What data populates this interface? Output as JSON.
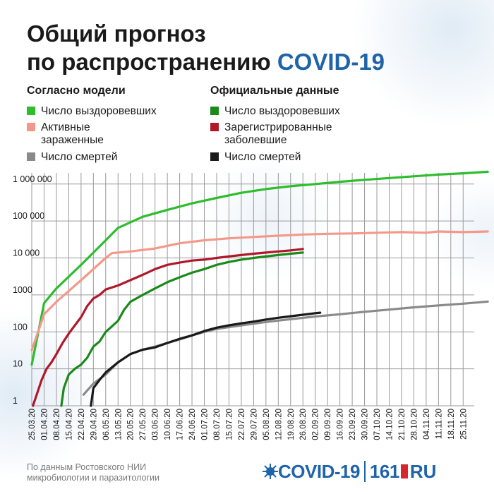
{
  "title": {
    "line1": "Общий прогноз",
    "line2_prefix": "по распространению ",
    "line2_accent": "COVID-19"
  },
  "legend": {
    "model_header": "Согласно модели",
    "official_header": "Официальные данные",
    "model_items": [
      {
        "label": "Число выздоровевших",
        "color": "#2dbd2d"
      },
      {
        "label": "Активные зараженные",
        "color": "#f4998a"
      },
      {
        "label": "Число смертей",
        "color": "#8a8a8a"
      }
    ],
    "official_items": [
      {
        "label": "Число выздоровевших",
        "color": "#1a8a1a"
      },
      {
        "label": "Зарегистрированные заболевшие",
        "color": "#b0182a"
      },
      {
        "label": "Число смертей",
        "color": "#1a1a1a"
      }
    ]
  },
  "source": "По данным Ростовского НИИ микробиологии и паразитологии",
  "brand": {
    "covid": "COVID-19",
    "num": "161",
    "ru": "RU"
  },
  "chart_data": {
    "type": "line",
    "y_scale": "log",
    "ylim": [
      1,
      2000000
    ],
    "y_ticks": [
      1,
      10,
      100,
      1000,
      10000,
      100000,
      1000000
    ],
    "y_tick_labels": [
      "1",
      "10",
      "100",
      "1000",
      "10 000",
      "100 000",
      "1 000 000"
    ],
    "x_labels": [
      "25.03.20",
      "01.04.20",
      "08.04.20",
      "15.04.20",
      "22.04.20",
      "29.04.20",
      "06.05.20",
      "13.05.20",
      "20.05.20",
      "27.05.20",
      "03.06.20",
      "10.06.20",
      "17.06.20",
      "24.06.20",
      "01.07.20",
      "08.07.20",
      "15.07.20",
      "22.07.20",
      "29.07.20",
      "05.08.20",
      "12.08.20",
      "19.08.20",
      "26.08.20",
      "02.09.20",
      "09.09.20",
      "16.09.20",
      "23.09.20",
      "30.09.20",
      "07.10.20",
      "14.10.20",
      "21.10.20",
      "28.10.20",
      "04.11.20",
      "11.11.20",
      "18.11.20",
      "25.11.20"
    ],
    "series": [
      {
        "name": "Число выздоровевших",
        "group": "model",
        "color": "#2dbd2d",
        "points": [
          [
            0,
            13
          ],
          [
            1,
            600
          ],
          [
            2,
            1500
          ],
          [
            4,
            6500
          ],
          [
            6,
            30000
          ],
          [
            7,
            65000
          ],
          [
            9,
            130000
          ],
          [
            11,
            200000
          ],
          [
            13,
            300000
          ],
          [
            15,
            420000
          ],
          [
            17,
            580000
          ],
          [
            19,
            730000
          ],
          [
            21,
            870000
          ],
          [
            23,
            1000000
          ],
          [
            25,
            1150000
          ],
          [
            27,
            1300000
          ],
          [
            29,
            1450000
          ],
          [
            31,
            1620000
          ],
          [
            33,
            1800000
          ],
          [
            35,
            1950000
          ],
          [
            37,
            2150000
          ]
        ]
      },
      {
        "name": "Активные зараженные",
        "group": "model",
        "color": "#f4998a",
        "points": [
          [
            0,
            32
          ],
          [
            1,
            300
          ],
          [
            2,
            650
          ],
          [
            4,
            2500
          ],
          [
            6,
            10000
          ],
          [
            6.5,
            13500
          ],
          [
            8,
            15000
          ],
          [
            10,
            18000
          ],
          [
            12,
            25000
          ],
          [
            14,
            30000
          ],
          [
            16,
            34000
          ],
          [
            18,
            37000
          ],
          [
            20,
            40000
          ],
          [
            22,
            43000
          ],
          [
            24,
            45000
          ],
          [
            26,
            46000
          ],
          [
            28,
            48000
          ],
          [
            30,
            50000
          ],
          [
            32,
            48000
          ],
          [
            33,
            52000
          ],
          [
            35,
            50000
          ],
          [
            37,
            52000
          ]
        ]
      },
      {
        "name": "Число смертей",
        "group": "model",
        "color": "#8a8a8a",
        "points": [
          [
            4.2,
            2
          ],
          [
            5,
            4
          ],
          [
            6,
            7
          ],
          [
            7,
            15
          ],
          [
            8,
            25
          ],
          [
            9,
            33
          ],
          [
            10,
            40
          ],
          [
            11,
            50
          ],
          [
            12,
            62
          ],
          [
            13,
            80
          ],
          [
            14,
            100
          ],
          [
            15,
            120
          ],
          [
            17,
            150
          ],
          [
            19,
            185
          ],
          [
            21,
            220
          ],
          [
            23,
            260
          ],
          [
            25,
            300
          ],
          [
            27,
            350
          ],
          [
            29,
            400
          ],
          [
            31,
            460
          ],
          [
            33,
            520
          ],
          [
            35,
            580
          ],
          [
            37,
            660
          ]
        ]
      },
      {
        "name": "Число выздоровевших",
        "group": "official",
        "color": "#1a8a1a",
        "points": [
          [
            2.4,
            1
          ],
          [
            2.6,
            3
          ],
          [
            3,
            7
          ],
          [
            3.5,
            10
          ],
          [
            4,
            13
          ],
          [
            4.5,
            20
          ],
          [
            5,
            40
          ],
          [
            5.5,
            55
          ],
          [
            6,
            100
          ],
          [
            6.5,
            140
          ],
          [
            7,
            200
          ],
          [
            7.5,
            400
          ],
          [
            8,
            650
          ],
          [
            9,
            1000
          ],
          [
            10,
            1500
          ],
          [
            11,
            2200
          ],
          [
            12,
            3000
          ],
          [
            13,
            4000
          ],
          [
            14,
            5000
          ],
          [
            15,
            6500
          ],
          [
            16,
            7800
          ],
          [
            17,
            9000
          ],
          [
            18,
            10000
          ],
          [
            19,
            11000
          ],
          [
            20,
            12000
          ],
          [
            21,
            13000
          ],
          [
            22,
            14000
          ]
        ]
      },
      {
        "name": "Зарегистрированные заболевшие",
        "group": "official",
        "color": "#b0182a",
        "points": [
          [
            0.1,
            1
          ],
          [
            0.4,
            2
          ],
          [
            0.8,
            5
          ],
          [
            1.2,
            10
          ],
          [
            1.6,
            15
          ],
          [
            2,
            25
          ],
          [
            2.5,
            50
          ],
          [
            3,
            90
          ],
          [
            3.5,
            150
          ],
          [
            4,
            250
          ],
          [
            4.5,
            500
          ],
          [
            5,
            800
          ],
          [
            5.5,
            1000
          ],
          [
            6,
            1400
          ],
          [
            7,
            1800
          ],
          [
            8,
            2500
          ],
          [
            9,
            3500
          ],
          [
            10,
            5000
          ],
          [
            11,
            6500
          ],
          [
            12,
            7500
          ],
          [
            13,
            8500
          ],
          [
            14,
            9000
          ],
          [
            15,
            10000
          ],
          [
            16,
            11000
          ],
          [
            17,
            12000
          ],
          [
            18,
            13000
          ],
          [
            19,
            14000
          ],
          [
            20,
            15000
          ],
          [
            21,
            16000
          ],
          [
            22,
            17500
          ]
        ]
      },
      {
        "name": "Число смертей",
        "group": "official",
        "color": "#1a1a1a",
        "points": [
          [
            4.8,
            1
          ],
          [
            5,
            3
          ],
          [
            5.5,
            5
          ],
          [
            6,
            8
          ],
          [
            7,
            15
          ],
          [
            8,
            25
          ],
          [
            9,
            33
          ],
          [
            10,
            38
          ],
          [
            11,
            50
          ],
          [
            12,
            65
          ],
          [
            13,
            80
          ],
          [
            14,
            105
          ],
          [
            15,
            130
          ],
          [
            16,
            150
          ],
          [
            17,
            170
          ],
          [
            18,
            190
          ],
          [
            19,
            215
          ],
          [
            20,
            240
          ],
          [
            21,
            265
          ],
          [
            22,
            290
          ],
          [
            23,
            320
          ],
          [
            23.4,
            330
          ]
        ]
      }
    ]
  }
}
